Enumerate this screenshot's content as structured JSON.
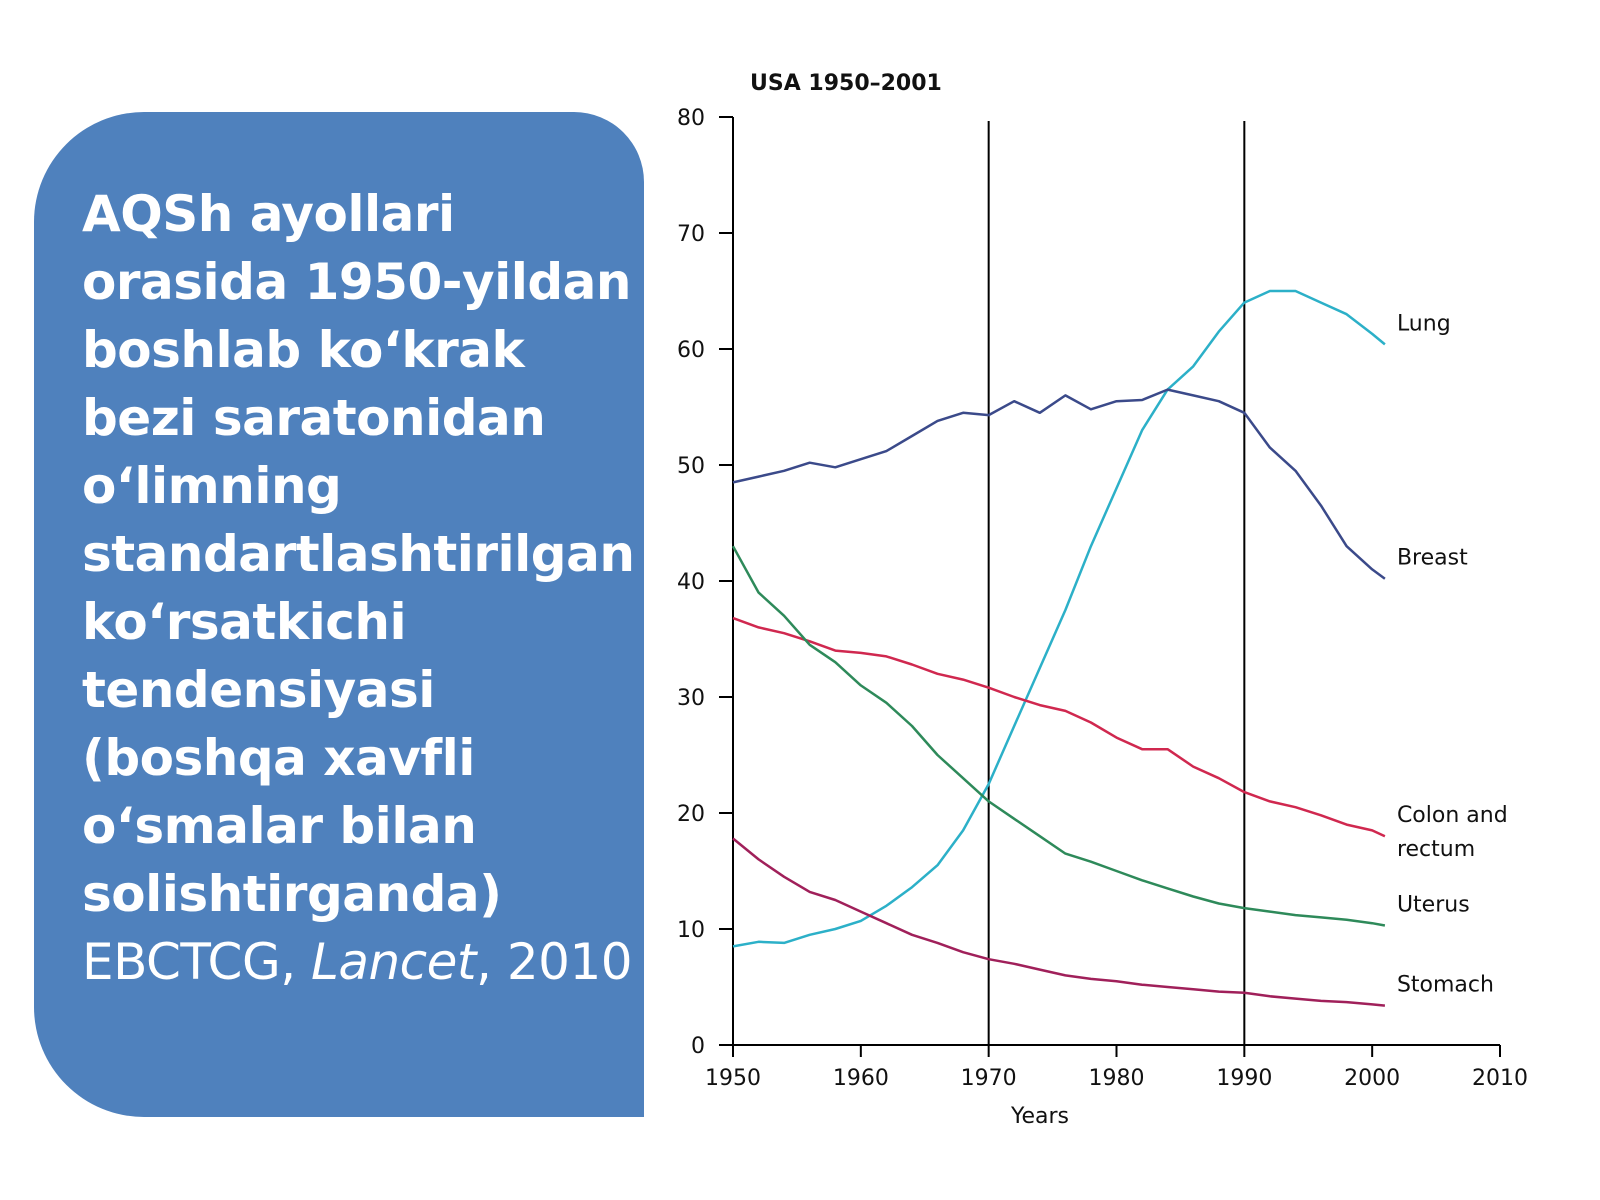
{
  "panel": {
    "title": "AQSh ayollari orasida 1950-yildan boshlab ko‘krak bezi saratonidan o‘limning standartlashtirilgan ko‘rsatkichi tendensiyasi (boshqa xavfli o‘smalar bilan solishtirganda)",
    "citation_author": "EBCTCG, ",
    "citation_journal": "Lancet",
    "citation_year": ", 2010"
  },
  "chart_data": {
    "type": "line",
    "title": "USA 1950–2001",
    "xlabel": "Years",
    "ylabel": "",
    "xlim": [
      1950,
      2010
    ],
    "ylim": [
      0,
      80
    ],
    "xticks": [
      1950,
      1960,
      1970,
      1980,
      1990,
      2000,
      2010
    ],
    "yticks": [
      0,
      10,
      20,
      30,
      40,
      50,
      60,
      70,
      80
    ],
    "vertical_lines": [
      1970,
      1990
    ],
    "grid": false,
    "legend": "inline labels at line ends",
    "series": [
      {
        "name": "Lung",
        "color": "#2cb0c8",
        "x": [
          1950,
          1952,
          1954,
          1956,
          1958,
          1960,
          1962,
          1964,
          1966,
          1968,
          1970,
          1972,
          1974,
          1976,
          1978,
          1980,
          1982,
          1984,
          1986,
          1988,
          1990,
          1992,
          1994,
          1996,
          1998,
          2000,
          2001
        ],
        "y": [
          8.5,
          8.9,
          8.8,
          9.5,
          10.0,
          10.7,
          12.0,
          13.6,
          15.5,
          18.5,
          22.5,
          27.5,
          32.5,
          37.5,
          43.0,
          48.0,
          53.0,
          56.5,
          58.5,
          61.5,
          64.0,
          65.0,
          65.0,
          64.0,
          63.0,
          61.3,
          60.4
        ]
      },
      {
        "name": "Breast",
        "color": "#3b4a8a",
        "x": [
          1950,
          1952,
          1954,
          1956,
          1958,
          1960,
          1962,
          1964,
          1966,
          1968,
          1970,
          1972,
          1974,
          1976,
          1978,
          1980,
          1982,
          1984,
          1986,
          1988,
          1990,
          1992,
          1994,
          1996,
          1998,
          2000,
          2001
        ],
        "y": [
          48.5,
          49.0,
          49.5,
          50.2,
          49.8,
          50.5,
          51.2,
          52.5,
          53.8,
          54.5,
          54.3,
          55.5,
          54.5,
          56.0,
          54.8,
          55.5,
          55.6,
          56.5,
          56.0,
          55.5,
          54.5,
          51.5,
          49.5,
          46.5,
          43.0,
          41.0,
          40.2
        ]
      },
      {
        "name": "Colon and rectum",
        "color": "#d0284f",
        "x": [
          1950,
          1952,
          1954,
          1956,
          1958,
          1960,
          1962,
          1964,
          1966,
          1968,
          1970,
          1972,
          1974,
          1976,
          1978,
          1980,
          1982,
          1984,
          1986,
          1988,
          1990,
          1992,
          1994,
          1996,
          1998,
          2000,
          2001
        ],
        "y": [
          36.8,
          36.0,
          35.5,
          34.8,
          34.0,
          33.8,
          33.5,
          32.8,
          32.0,
          31.5,
          30.8,
          30.0,
          29.3,
          28.8,
          27.8,
          26.5,
          25.5,
          25.5,
          24.0,
          23.0,
          21.8,
          21.0,
          20.5,
          19.8,
          19.0,
          18.5,
          18.0
        ]
      },
      {
        "name": "Uterus",
        "color": "#2e8a5a",
        "x": [
          1950,
          1952,
          1954,
          1956,
          1958,
          1960,
          1962,
          1964,
          1966,
          1968,
          1970,
          1972,
          1974,
          1976,
          1978,
          1980,
          1982,
          1984,
          1986,
          1988,
          1990,
          1992,
          1994,
          1996,
          1998,
          2000,
          2001
        ],
        "y": [
          43.0,
          39.0,
          37.0,
          34.5,
          33.0,
          31.0,
          29.5,
          27.5,
          25.0,
          23.0,
          21.0,
          19.5,
          18.0,
          16.5,
          15.8,
          15.0,
          14.2,
          13.5,
          12.8,
          12.2,
          11.8,
          11.5,
          11.2,
          11.0,
          10.8,
          10.5,
          10.3
        ]
      },
      {
        "name": "Stomach",
        "color": "#a0205a",
        "x": [
          1950,
          1952,
          1954,
          1956,
          1958,
          1960,
          1962,
          1964,
          1966,
          1968,
          1970,
          1972,
          1974,
          1976,
          1978,
          1980,
          1982,
          1984,
          1986,
          1988,
          1990,
          1992,
          1994,
          1996,
          1998,
          2000,
          2001
        ],
        "y": [
          17.8,
          16.0,
          14.5,
          13.2,
          12.5,
          11.5,
          10.5,
          9.5,
          8.8,
          8.0,
          7.4,
          7.0,
          6.5,
          6.0,
          5.7,
          5.5,
          5.2,
          5.0,
          4.8,
          4.6,
          4.5,
          4.2,
          4.0,
          3.8,
          3.7,
          3.5,
          3.4
        ]
      }
    ],
    "series_labels": {
      "Lung": [
        "Lung"
      ],
      "Breast": [
        "Breast"
      ],
      "Colon and rectum": [
        "Colon and",
        "rectum"
      ],
      "Uterus": [
        "Uterus"
      ],
      "Stomach": [
        "Stomach"
      ]
    }
  }
}
